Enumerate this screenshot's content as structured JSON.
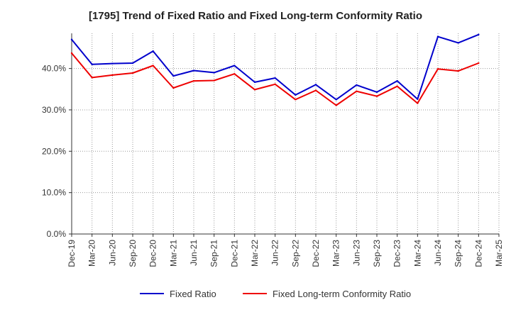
{
  "chart_data": {
    "type": "line",
    "title": "[1795]  Trend of Fixed Ratio and Fixed Long-term Conformity Ratio",
    "xlabel": "",
    "ylabel": "",
    "ylim": [
      0,
      48.5
    ],
    "y_ticks": [
      "0.0%",
      "10.0%",
      "20.0%",
      "30.0%",
      "40.0%"
    ],
    "y_tick_values": [
      0,
      10,
      20,
      30,
      40
    ],
    "grid": true,
    "legend_position": "bottom",
    "x_tick_labels": [
      "Dec-19",
      "Mar-20",
      "Jun-20",
      "Sep-20",
      "Dec-20",
      "Mar-21",
      "Jun-21",
      "Sep-21",
      "Dec-21",
      "Mar-22",
      "Jun-22",
      "Sep-22",
      "Dec-22",
      "Mar-23",
      "Jun-23",
      "Sep-23",
      "Dec-23",
      "Mar-24",
      "Jun-24",
      "Sep-24",
      "Dec-24",
      "Mar-25"
    ],
    "categories": [
      "Dec-19",
      "Mar-20",
      "Jun-20",
      "Sep-20",
      "Dec-20",
      "Mar-21",
      "Jun-21",
      "Sep-21",
      "Dec-21",
      "Mar-22",
      "Jun-22",
      "Sep-22",
      "Dec-22",
      "Mar-23",
      "Jun-23",
      "Sep-23",
      "Dec-23",
      "Mar-24",
      "Jun-24",
      "Sep-24",
      "Dec-24"
    ],
    "series": [
      {
        "name": "Fixed Ratio",
        "color": "#0000cc",
        "values": [
          47.0,
          41.0,
          41.2,
          41.3,
          44.2,
          38.2,
          39.5,
          39.0,
          40.7,
          36.7,
          37.7,
          33.6,
          36.1,
          32.5,
          36.0,
          34.3,
          37.0,
          32.6,
          47.7,
          46.2,
          48.2
        ]
      },
      {
        "name": "Fixed Long-term Conformity Ratio",
        "color": "#ee0000",
        "values": [
          43.7,
          37.8,
          38.4,
          38.9,
          40.7,
          35.3,
          37.0,
          37.1,
          38.7,
          34.9,
          36.2,
          32.5,
          34.7,
          31.1,
          34.5,
          33.3,
          35.7,
          31.6,
          39.9,
          39.4,
          41.3
        ]
      }
    ]
  }
}
